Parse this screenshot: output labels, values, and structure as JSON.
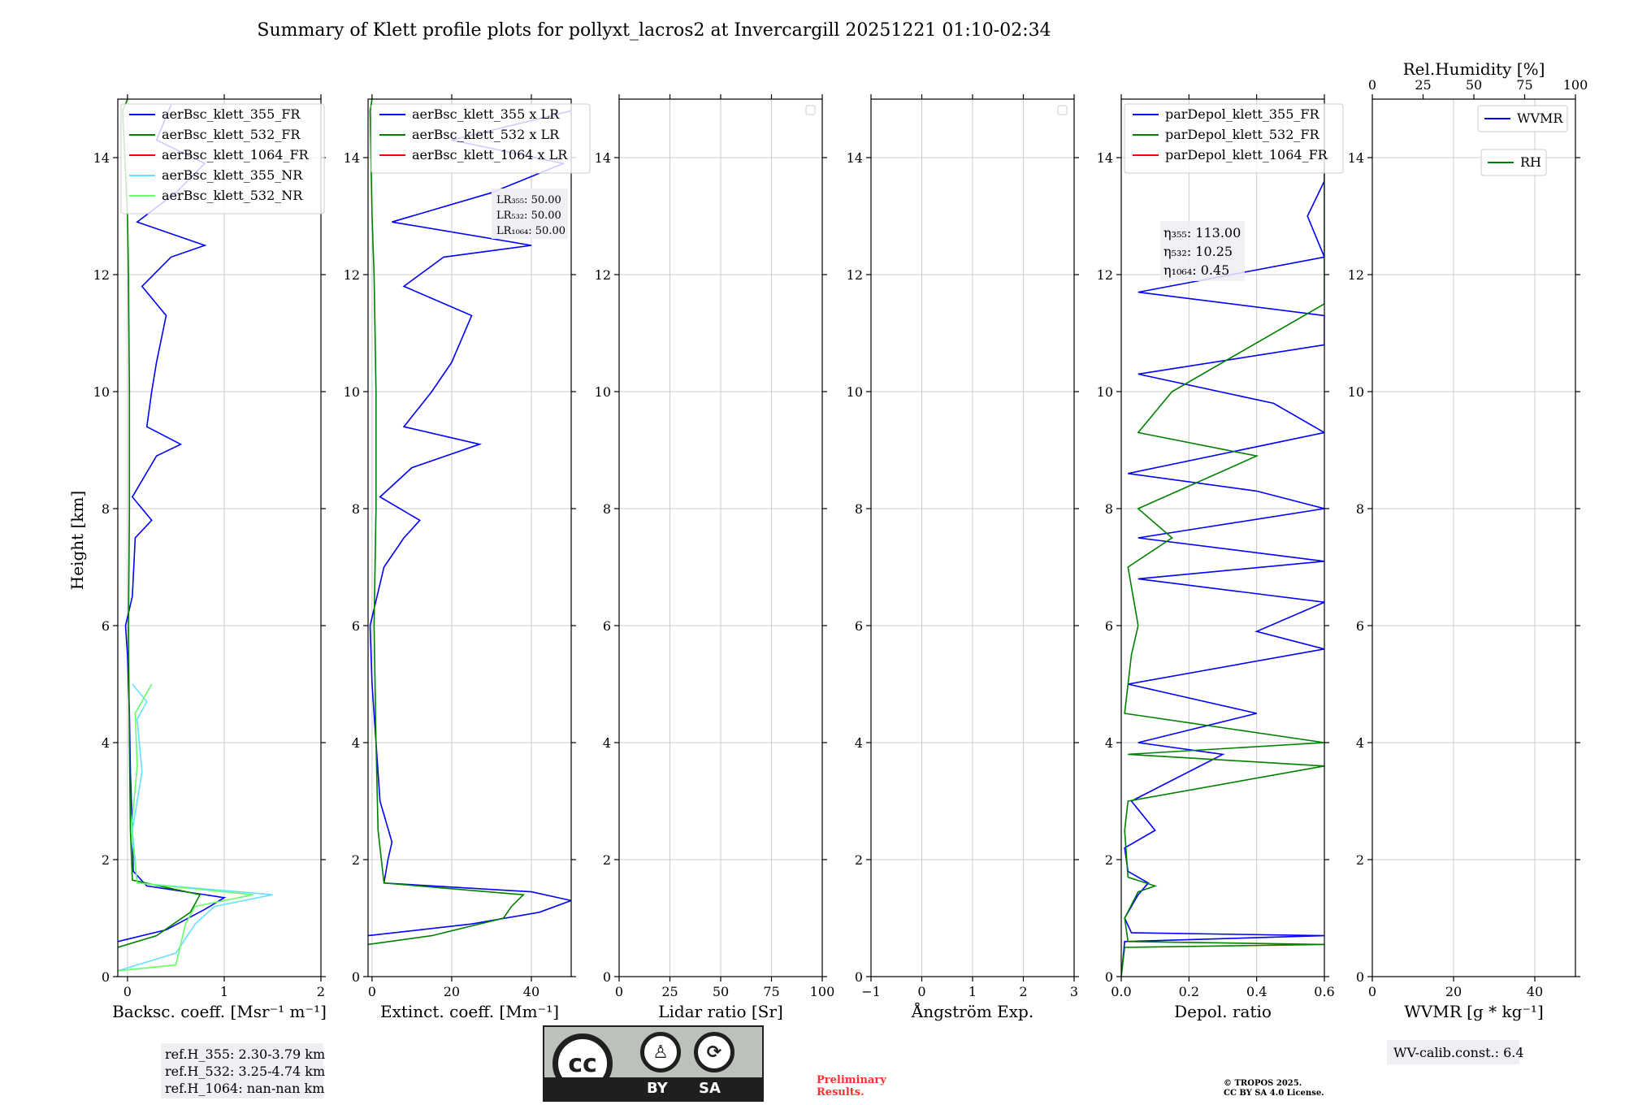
{
  "title": "Summary of Klett profile plots for pollyxt_lacros2 at Invercargill 20251221 01:10-02:34",
  "y_label": "Height [km]",
  "colors": {
    "c355": "#0000ff",
    "c532": "#008000",
    "c1064": "#ff0000",
    "c355nr": "#66e0ff",
    "c532nr": "#66ff66"
  },
  "chart_data": [
    {
      "type": "line",
      "id": "backscatter",
      "xlabel": "Backsc. coeff. [Msr⁻¹ m⁻¹]",
      "xlim": [
        -0.1,
        2.0
      ],
      "ylim": [
        0,
        15
      ],
      "xticks": [
        0,
        1,
        2
      ],
      "xtick_labels": [
        "0",
        "1",
        "2"
      ],
      "yticks": [
        0,
        2,
        4,
        6,
        8,
        10,
        12,
        14
      ],
      "ytick_labels": [
        "0",
        "2",
        "4",
        "6",
        "8",
        "10",
        "12",
        "14"
      ],
      "grid": true,
      "legend": [
        "aerBsc_klett_355_FR",
        "aerBsc_klett_532_FR",
        "aerBsc_klett_1064_FR",
        "aerBsc_klett_355_NR",
        "aerBsc_klett_532_NR"
      ],
      "legend_position": "top-left",
      "series": [
        {
          "name": "aerBsc_klett_355_FR",
          "color": "c355",
          "points": [
            [
              -0.1,
              0.6
            ],
            [
              0.4,
              0.8
            ],
            [
              0.8,
              1.15
            ],
            [
              1.0,
              1.35
            ],
            [
              0.2,
              1.55
            ],
            [
              0.06,
              1.8
            ],
            [
              0.05,
              2.5
            ],
            [
              0.03,
              3.5
            ],
            [
              0.02,
              4.5
            ],
            [
              0.0,
              5.5
            ],
            [
              -0.02,
              6.0
            ],
            [
              0.05,
              6.5
            ],
            [
              0.08,
              7.5
            ],
            [
              0.25,
              7.8
            ],
            [
              0.05,
              8.2
            ],
            [
              0.3,
              8.9
            ],
            [
              0.55,
              9.1
            ],
            [
              0.2,
              9.4
            ],
            [
              0.25,
              10.0
            ],
            [
              0.3,
              10.5
            ],
            [
              0.4,
              11.3
            ],
            [
              0.15,
              11.8
            ],
            [
              0.45,
              12.3
            ],
            [
              0.8,
              12.5
            ],
            [
              0.1,
              12.9
            ],
            [
              0.5,
              13.4
            ],
            [
              0.8,
              13.9
            ],
            [
              0.3,
              14.3
            ],
            [
              0.45,
              14.9
            ]
          ]
        },
        {
          "name": "aerBsc_klett_532_FR",
          "color": "c532",
          "points": [
            [
              -0.1,
              0.5
            ],
            [
              0.3,
              0.7
            ],
            [
              0.65,
              1.1
            ],
            [
              0.75,
              1.4
            ],
            [
              0.05,
              1.65
            ],
            [
              0.03,
              2.5
            ],
            [
              0.02,
              4.0
            ],
            [
              0.01,
              6.0
            ],
            [
              0.02,
              8.0
            ],
            [
              0.02,
              10.0
            ],
            [
              0.01,
              12.0
            ],
            [
              0.0,
              13.0
            ],
            [
              -0.05,
              14.8
            ],
            [
              0.0,
              15.0
            ]
          ]
        },
        {
          "name": "aerBsc_klett_355_NR",
          "color": "c355nr",
          "points": [
            [
              -0.1,
              0.1
            ],
            [
              0.5,
              0.4
            ],
            [
              0.7,
              0.9
            ],
            [
              0.9,
              1.2
            ],
            [
              1.5,
              1.4
            ],
            [
              0.1,
              1.6
            ],
            [
              0.05,
              2.5
            ],
            [
              0.15,
              3.5
            ],
            [
              0.1,
              4.4
            ],
            [
              0.2,
              4.7
            ],
            [
              0.05,
              5.0
            ]
          ]
        },
        {
          "name": "aerBsc_klett_532_NR",
          "color": "c532nr",
          "points": [
            [
              -0.1,
              0.1
            ],
            [
              0.5,
              0.2
            ],
            [
              0.6,
              0.9
            ],
            [
              0.7,
              1.2
            ],
            [
              1.3,
              1.4
            ],
            [
              0.1,
              1.6
            ],
            [
              0.04,
              2.5
            ],
            [
              0.1,
              3.6
            ],
            [
              0.08,
              4.5
            ],
            [
              0.25,
              5.0
            ]
          ]
        }
      ],
      "ref_box": [
        "ref.H_355: 2.30-3.79 km",
        "ref.H_532: 3.25-4.74 km",
        "ref.H_1064: nan-nan km"
      ]
    },
    {
      "type": "line",
      "id": "extinction",
      "xlabel": "Extinct. coeff. [Mm⁻¹]",
      "xlim": [
        -1,
        50
      ],
      "ylim": [
        0,
        15
      ],
      "xticks": [
        0,
        20,
        40
      ],
      "xtick_labels": [
        "0",
        "20",
        "40"
      ],
      "yticks": [
        0,
        2,
        4,
        6,
        8,
        10,
        12,
        14
      ],
      "ytick_labels": [
        "0",
        "2",
        "4",
        "6",
        "8",
        "10",
        "12",
        "14"
      ],
      "grid": true,
      "legend": [
        "aerBsc_klett_355 x LR",
        "aerBsc_klett_532 x LR",
        "aerBsc_klett_1064 x LR"
      ],
      "legend_position": "top-left",
      "lr_box": [
        "LR₃₅₅: 50.00",
        "LR₅₃₂: 50.00",
        "LR₁₀₆₄: 50.00"
      ],
      "series": [
        {
          "name": "aerBsc_klett_355 x LR",
          "color": "c355",
          "points": [
            [
              -1,
              0.7
            ],
            [
              25,
              0.9
            ],
            [
              42,
              1.1
            ],
            [
              50,
              1.3
            ],
            [
              40,
              1.45
            ],
            [
              3,
              1.6
            ],
            [
              4,
              2.0
            ],
            [
              5,
              2.3
            ],
            [
              2,
              3.0
            ],
            [
              1,
              4.0
            ],
            [
              0,
              5.0
            ],
            [
              -0.5,
              6.0
            ],
            [
              3,
              7.0
            ],
            [
              8,
              7.5
            ],
            [
              12,
              7.8
            ],
            [
              2,
              8.2
            ],
            [
              10,
              8.7
            ],
            [
              27,
              9.1
            ],
            [
              8,
              9.4
            ],
            [
              15,
              10.0
            ],
            [
              20,
              10.5
            ],
            [
              25,
              11.3
            ],
            [
              8,
              11.8
            ],
            [
              18,
              12.3
            ],
            [
              40,
              12.5
            ],
            [
              5,
              12.9
            ],
            [
              30,
              13.4
            ],
            [
              48,
              13.9
            ],
            [
              20,
              14.3
            ],
            [
              50,
              14.8
            ]
          ]
        },
        {
          "name": "aerBsc_klett_532 x LR",
          "color": "c532",
          "points": [
            [
              -1,
              0.55
            ],
            [
              15,
              0.7
            ],
            [
              33,
              1.0
            ],
            [
              35,
              1.2
            ],
            [
              38,
              1.4
            ],
            [
              3,
              1.6
            ],
            [
              1.5,
              2.5
            ],
            [
              1,
              4.0
            ],
            [
              0.5,
              6.0
            ],
            [
              1,
              8.0
            ],
            [
              1,
              10.0
            ],
            [
              0.5,
              12.0
            ],
            [
              0,
              13.0
            ],
            [
              -0.5,
              14.8
            ],
            [
              0,
              15.0
            ]
          ]
        }
      ]
    },
    {
      "type": "line",
      "id": "lidar_ratio",
      "xlabel": "Lidar ratio [Sr]",
      "xlim": [
        0,
        100
      ],
      "ylim": [
        0,
        15
      ],
      "xticks": [
        0,
        25,
        50,
        75,
        100
      ],
      "xtick_labels": [
        "0",
        "25",
        "50",
        "75",
        "100"
      ],
      "yticks": [
        0,
        2,
        4,
        6,
        8,
        10,
        12,
        14
      ],
      "ytick_labels": [
        "0",
        "2",
        "4",
        "6",
        "8",
        "10",
        "12",
        "14"
      ],
      "grid": true,
      "series": []
    },
    {
      "type": "line",
      "id": "angstrom",
      "xlabel": "Ångström Exp.",
      "xlim": [
        -1,
        3
      ],
      "ylim": [
        0,
        15
      ],
      "xticks": [
        -1,
        0,
        1,
        2,
        3
      ],
      "xtick_labels": [
        "−1",
        "0",
        "1",
        "2",
        "3"
      ],
      "yticks": [
        0,
        2,
        4,
        6,
        8,
        10,
        12,
        14
      ],
      "ytick_labels": [
        "0",
        "2",
        "4",
        "6",
        "8",
        "10",
        "12",
        "14"
      ],
      "grid": true,
      "series": []
    },
    {
      "type": "line",
      "id": "depol",
      "xlabel": "Depol. ratio",
      "xlim": [
        0,
        0.6
      ],
      "ylim": [
        0,
        15
      ],
      "xticks": [
        0,
        0.2,
        0.4,
        0.6
      ],
      "xtick_labels": [
        "0.0",
        "0.2",
        "0.4",
        "0.6"
      ],
      "yticks": [
        0,
        2,
        4,
        6,
        8,
        10,
        12,
        14
      ],
      "ytick_labels": [
        "0",
        "2",
        "4",
        "6",
        "8",
        "10",
        "12",
        "14"
      ],
      "grid": true,
      "legend": [
        "parDepol_klett_355_FR",
        "parDepol_klett_532_FR",
        "parDepol_klett_1064_FR"
      ],
      "legend_position": "top-left",
      "eta_box": [
        "η₃₅₅: 113.00",
        "η₅₃₂: 10.25",
        "η₁₀₆₄: 0.45"
      ],
      "series": [
        {
          "name": "parDepol_klett_355_FR",
          "color": "c355",
          "points": [
            [
              0,
              0
            ],
            [
              0.01,
              0.6
            ],
            [
              0.6,
              0.7
            ],
            [
              0.03,
              0.75
            ],
            [
              0.01,
              1.0
            ],
            [
              0.05,
              1.4
            ],
            [
              0.08,
              1.6
            ],
            [
              0.02,
              1.8
            ],
            [
              0.01,
              2.2
            ],
            [
              0.1,
              2.5
            ],
            [
              0.03,
              3.0
            ],
            [
              0.3,
              3.8
            ],
            [
              0.05,
              4.0
            ],
            [
              0.4,
              4.5
            ],
            [
              0.02,
              5.0
            ],
            [
              0.6,
              5.6
            ],
            [
              0.4,
              5.9
            ],
            [
              0.6,
              6.4
            ],
            [
              0.05,
              6.8
            ],
            [
              0.6,
              7.1
            ],
            [
              0.05,
              7.5
            ],
            [
              0.6,
              8.0
            ],
            [
              0.4,
              8.3
            ],
            [
              0.02,
              8.6
            ],
            [
              0.6,
              9.3
            ],
            [
              0.45,
              9.8
            ],
            [
              0.05,
              10.3
            ],
            [
              0.6,
              10.8
            ],
            [
              0.6,
              11.3
            ],
            [
              0.05,
              11.7
            ],
            [
              0.6,
              12.3
            ],
            [
              0.55,
              13.0
            ],
            [
              0.6,
              13.6
            ],
            [
              0.6,
              14.4
            ],
            [
              0.6,
              14.9
            ]
          ]
        },
        {
          "name": "parDepol_klett_532_FR",
          "color": "c532",
          "points": [
            [
              0,
              0
            ],
            [
              0.01,
              0.5
            ],
            [
              0.6,
              0.55
            ],
            [
              0.02,
              0.6
            ],
            [
              0.01,
              1.0
            ],
            [
              0.05,
              1.45
            ],
            [
              0.1,
              1.55
            ],
            [
              0.02,
              1.7
            ],
            [
              0.01,
              2.5
            ],
            [
              0.02,
              3.0
            ],
            [
              0.6,
              3.6
            ],
            [
              0.02,
              3.8
            ],
            [
              0.6,
              4.0
            ],
            [
              0.01,
              4.5
            ],
            [
              0.03,
              5.5
            ],
            [
              0.05,
              6.0
            ],
            [
              0.02,
              7.0
            ],
            [
              0.15,
              7.5
            ],
            [
              0.05,
              8.0
            ],
            [
              0.4,
              8.9
            ],
            [
              0.05,
              9.3
            ],
            [
              0.15,
              10.0
            ],
            [
              0.6,
              11.5
            ],
            [
              0.6,
              12.2
            ],
            [
              0.6,
              12.4
            ],
            [
              0.6,
              13.4
            ],
            [
              0.6,
              14.0
            ],
            [
              0.6,
              14.5
            ],
            [
              0.6,
              14.9
            ]
          ]
        }
      ]
    },
    {
      "type": "line",
      "id": "wvmr",
      "xlabel": "WVMR [g * kg⁻¹]",
      "xlim": [
        0,
        50
      ],
      "ylim": [
        0,
        15
      ],
      "xticks": [
        0,
        20,
        40
      ],
      "xtick_labels": [
        "0",
        "20",
        "40"
      ],
      "top_xlabel": "Rel.Humidity [%]",
      "top_xlim": [
        0,
        100
      ],
      "top_xticks": [
        0,
        25,
        50,
        75,
        100
      ],
      "top_xtick_labels": [
        "0",
        "25",
        "50",
        "75",
        "100"
      ],
      "yticks": [
        0,
        2,
        4,
        6,
        8,
        10,
        12,
        14
      ],
      "ytick_labels": [
        "0",
        "2",
        "4",
        "6",
        "8",
        "10",
        "12",
        "14"
      ],
      "grid": true,
      "legend": [
        "WVMR",
        "RH"
      ],
      "legend_position": "top-right",
      "calib_box": "WV-calib.const.: 6.4",
      "series": []
    }
  ],
  "footer": {
    "cc_label_by": "BY",
    "cc_label_sa": "SA",
    "cc_main": "cc",
    "preliminary": [
      "Preliminary",
      "Results."
    ],
    "copyright": [
      "© TROPOS 2025.",
      "CC BY SA 4.0 License."
    ]
  }
}
